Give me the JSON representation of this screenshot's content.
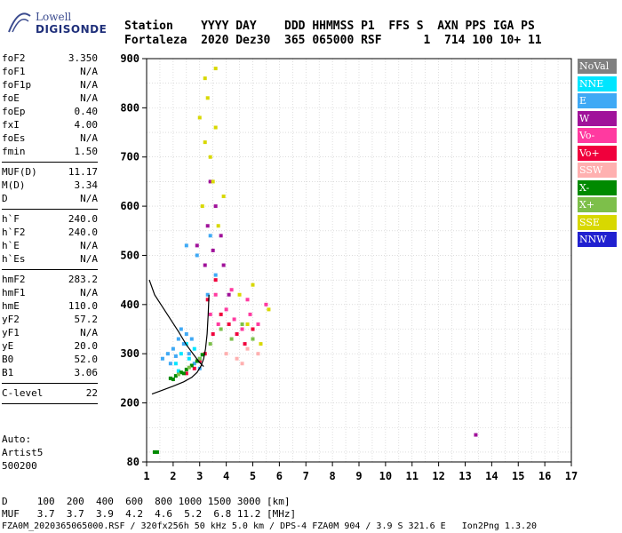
{
  "logo": {
    "brand": "Lowell",
    "product": "DIGISONDE"
  },
  "header": {
    "labels": "Station    YYYY DAY    DDD HHMMSS P1  FFS S  AXN PPS IGA PS",
    "values": "Fortaleza  2020 Dez30  365 065000 RSF      1  714 100 10+ 11"
  },
  "params": {
    "group1": [
      {
        "label": "foF2",
        "value": "3.350"
      },
      {
        "label": "foF1",
        "value": "N/A"
      },
      {
        "label": "foF1p",
        "value": "N/A"
      },
      {
        "label": "foE",
        "value": "N/A"
      },
      {
        "label": "foEp",
        "value": "0.40"
      },
      {
        "label": "fxI",
        "value": "4.00"
      },
      {
        "label": "foEs",
        "value": "N/A"
      },
      {
        "label": "fmin",
        "value": "1.50"
      }
    ],
    "group2": [
      {
        "label": "MUF(D)",
        "value": "11.17"
      },
      {
        "label": "M(D)",
        "value": "3.34"
      },
      {
        "label": "D",
        "value": "N/A"
      }
    ],
    "group3": [
      {
        "label": "h`F",
        "value": "240.0"
      },
      {
        "label": "h`F2",
        "value": "240.0"
      },
      {
        "label": "h`E",
        "value": "N/A"
      },
      {
        "label": "h`Es",
        "value": "N/A"
      }
    ],
    "group4": [
      {
        "label": "hmF2",
        "value": "283.2"
      },
      {
        "label": "hmF1",
        "value": "N/A"
      },
      {
        "label": "hmE",
        "value": "110.0"
      },
      {
        "label": "yF2",
        "value": "57.2"
      },
      {
        "label": "yF1",
        "value": "N/A"
      },
      {
        "label": "yE",
        "value": "20.0"
      },
      {
        "label": "B0",
        "value": "52.0"
      },
      {
        "label": "B1",
        "value": "3.06"
      }
    ],
    "group5": [
      {
        "label": "C-level",
        "value": "22"
      }
    ]
  },
  "autoscaling": {
    "line1": "Auto:",
    "line2": "Artist5",
    "line3": "500200"
  },
  "legend": [
    {
      "name": "NoVal",
      "color": "#808080",
      "text": "#ffffff"
    },
    {
      "name": "NNE",
      "color": "#00e5ff",
      "text": "#ffffff"
    },
    {
      "name": "E",
      "color": "#3fa9f5",
      "text": "#ffffff"
    },
    {
      "name": "W",
      "color": "#a0129a",
      "text": "#ffffff"
    },
    {
      "name": "Vo-",
      "color": "#ff3aa0",
      "text": "#ffffff"
    },
    {
      "name": "Vo+",
      "color": "#f0003c",
      "text": "#ffffff"
    },
    {
      "name": "SSW",
      "color": "#ffb0b0",
      "text": "#ffffff"
    },
    {
      "name": "X-",
      "color": "#008a00",
      "text": "#ffffff"
    },
    {
      "name": "X+",
      "color": "#7dbf4a",
      "text": "#ffffff"
    },
    {
      "name": "SSE",
      "color": "#d8d800",
      "text": "#ffffff"
    },
    {
      "name": "NNW",
      "color": "#2020d0",
      "text": "#ffffff"
    }
  ],
  "footer": {
    "row1": "D     100  200  400  600  800 1000 1500 3000 [km]",
    "row2": "MUF   3.7  3.7  3.9  4.2  4.6  5.2  6.8 11.2 [MHz]",
    "line": "FZA0M_2020365065000.RSF / 320fx256h 50 kHz 5.0 km / DPS-4 FZA0M 904 / 3.9 S 321.6 E   Ion2Png 1.3.20"
  },
  "chart_data": {
    "type": "scatter",
    "xlim": [
      1,
      17
    ],
    "ylim": [
      80,
      900
    ],
    "x_ticks": [
      "1",
      "2",
      "3",
      "4",
      "5",
      "6",
      "7",
      "8",
      "9",
      "10",
      "11",
      "12",
      "13",
      "14",
      "15",
      "16",
      "17"
    ],
    "y_ticks": [
      "80",
      "200",
      "300",
      "400",
      "500",
      "600",
      "700",
      "800",
      "900"
    ],
    "grid": true,
    "series": [
      {
        "name": "NNE",
        "color": "#00e5ff",
        "points": [
          [
            2.1,
            280
          ],
          [
            2.3,
            300
          ],
          [
            2.5,
            320
          ],
          [
            2.8,
            310
          ],
          [
            3.0,
            290
          ],
          [
            2.2,
            265
          ],
          [
            2.6,
            290
          ]
        ]
      },
      {
        "name": "E",
        "color": "#3fa9f5",
        "points": [
          [
            1.6,
            290
          ],
          [
            1.8,
            300
          ],
          [
            2.0,
            310
          ],
          [
            2.2,
            330
          ],
          [
            2.4,
            320
          ],
          [
            2.6,
            300
          ],
          [
            2.8,
            280
          ],
          [
            3.0,
            270
          ],
          [
            2.5,
            340
          ],
          [
            2.3,
            350
          ],
          [
            2.7,
            330
          ],
          [
            1.9,
            280
          ],
          [
            2.1,
            295
          ],
          [
            3.3,
            420
          ],
          [
            3.6,
            460
          ],
          [
            3.4,
            540
          ],
          [
            2.5,
            520
          ],
          [
            2.9,
            500
          ]
        ]
      },
      {
        "name": "W",
        "color": "#a0129a",
        "points": [
          [
            3.2,
            480
          ],
          [
            3.5,
            510
          ],
          [
            3.8,
            540
          ],
          [
            3.3,
            560
          ],
          [
            3.6,
            600
          ],
          [
            2.9,
            520
          ],
          [
            3.9,
            480
          ],
          [
            4.1,
            420
          ],
          [
            3.4,
            650
          ],
          [
            13.4,
            135
          ]
        ]
      },
      {
        "name": "Vo-",
        "color": "#ff3aa0",
        "points": [
          [
            3.4,
            380
          ],
          [
            3.7,
            360
          ],
          [
            4.0,
            390
          ],
          [
            4.3,
            370
          ],
          [
            4.6,
            350
          ],
          [
            4.9,
            380
          ],
          [
            5.2,
            360
          ],
          [
            3.6,
            420
          ],
          [
            4.2,
            430
          ],
          [
            4.8,
            410
          ],
          [
            5.5,
            400
          ]
        ]
      },
      {
        "name": "Vo+",
        "color": "#f0003c",
        "points": [
          [
            3.2,
            300
          ],
          [
            3.5,
            340
          ],
          [
            3.8,
            380
          ],
          [
            4.1,
            360
          ],
          [
            4.4,
            340
          ],
          [
            4.7,
            320
          ],
          [
            5.0,
            350
          ],
          [
            3.3,
            410
          ],
          [
            3.6,
            450
          ],
          [
            2.8,
            270
          ],
          [
            2.5,
            260
          ],
          [
            3.0,
            285
          ]
        ]
      },
      {
        "name": "SSW",
        "color": "#ffb0b0",
        "points": [
          [
            4.0,
            300
          ],
          [
            4.4,
            290
          ],
          [
            4.8,
            310
          ],
          [
            5.2,
            300
          ],
          [
            4.6,
            280
          ]
        ]
      },
      {
        "name": "X-",
        "color": "#008a00",
        "points": [
          [
            1.9,
            250
          ],
          [
            2.1,
            255
          ],
          [
            2.3,
            262
          ],
          [
            2.5,
            268
          ],
          [
            2.7,
            276
          ],
          [
            2.9,
            285
          ],
          [
            3.1,
            298
          ],
          [
            2.4,
            260
          ],
          [
            2.0,
            248
          ],
          [
            1.3,
            100
          ],
          [
            1.4,
            100
          ]
        ]
      },
      {
        "name": "X+",
        "color": "#7dbf4a",
        "points": [
          [
            2.2,
            258
          ],
          [
            2.6,
            272
          ],
          [
            3.0,
            290
          ],
          [
            3.4,
            320
          ],
          [
            3.8,
            350
          ],
          [
            4.2,
            330
          ],
          [
            4.6,
            360
          ],
          [
            5.0,
            330
          ]
        ]
      },
      {
        "name": "SSE",
        "color": "#d8d800",
        "points": [
          [
            3.0,
            780
          ],
          [
            3.2,
            730
          ],
          [
            3.4,
            700
          ],
          [
            3.6,
            760
          ],
          [
            3.3,
            820
          ],
          [
            3.5,
            650
          ],
          [
            3.1,
            600
          ],
          [
            3.7,
            560
          ],
          [
            4.5,
            420
          ],
          [
            5.0,
            440
          ],
          [
            5.6,
            390
          ],
          [
            4.8,
            360
          ],
          [
            5.3,
            320
          ],
          [
            3.9,
            620
          ],
          [
            3.2,
            860
          ],
          [
            3.6,
            880
          ]
        ]
      }
    ],
    "curves": [
      {
        "name": "profile-lower",
        "color": "#000000",
        "points": [
          [
            1.2,
            218
          ],
          [
            1.6,
            226
          ],
          [
            2.0,
            234
          ],
          [
            2.4,
            243
          ],
          [
            2.7,
            252
          ],
          [
            2.9,
            262
          ],
          [
            3.05,
            275
          ],
          [
            3.15,
            290
          ],
          [
            3.22,
            310
          ],
          [
            3.28,
            340
          ],
          [
            3.32,
            380
          ],
          [
            3.35,
            420
          ]
        ]
      },
      {
        "name": "profile-upper",
        "color": "#000000",
        "points": [
          [
            1.1,
            450
          ],
          [
            1.3,
            420
          ],
          [
            1.6,
            395
          ],
          [
            1.9,
            370
          ],
          [
            2.2,
            345
          ],
          [
            2.5,
            318
          ],
          [
            2.8,
            296
          ],
          [
            3.0,
            282
          ],
          [
            3.15,
            274
          ]
        ]
      }
    ]
  }
}
